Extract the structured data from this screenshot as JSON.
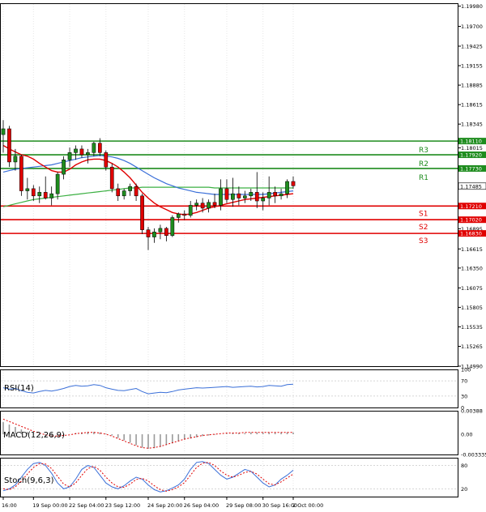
{
  "chart_data": {
    "type": "candlestick",
    "symbol_panel": {
      "price_ticks": [
        "1.19980",
        "1.19700",
        "1.19425",
        "1.19155",
        "1.18885",
        "1.18615",
        "1.18345",
        "1.18015",
        "1.17485",
        "1.16895",
        "1.16615",
        "1.16350",
        "1.16075",
        "1.15805",
        "1.15535",
        "1.15265",
        "1.14990"
      ],
      "price_tick_values": [
        1.1998,
        1.197,
        1.19425,
        1.19155,
        1.18885,
        1.18615,
        1.18345,
        1.18015,
        1.17485,
        1.16895,
        1.16615,
        1.1635,
        1.16075,
        1.15805,
        1.15535,
        1.15265,
        1.1499
      ],
      "ylim": [
        1.1499,
        1.2002
      ],
      "levels": [
        {
          "name": "R3",
          "value": 1.1811,
          "label": "1.18110",
          "color": "#1e8c1e"
        },
        {
          "name": "R2",
          "value": 1.1792,
          "label": "1.17920",
          "color": "#1e8c1e"
        },
        {
          "name": "R1",
          "value": 1.1773,
          "label": "1.17730",
          "color": "#1e8c1e"
        },
        {
          "name": "S1",
          "value": 1.1721,
          "label": "1.17210",
          "color": "#e00000"
        },
        {
          "name": "S2",
          "value": 1.1702,
          "label": "1.17020",
          "color": "#e00000"
        },
        {
          "name": "S3",
          "value": 1.1683,
          "label": "1.16830",
          "color": "#e00000"
        }
      ],
      "current_price": {
        "value": 1.17485,
        "label": "1.17485"
      },
      "candles": [
        {
          "o": 1.182,
          "h": 1.184,
          "l": 1.1795,
          "c": 1.1828
        },
        {
          "o": 1.1828,
          "h": 1.1832,
          "l": 1.1775,
          "c": 1.1782
        },
        {
          "o": 1.1782,
          "h": 1.18,
          "l": 1.177,
          "c": 1.179
        },
        {
          "o": 1.179,
          "h": 1.1792,
          "l": 1.1735,
          "c": 1.1742
        },
        {
          "o": 1.1742,
          "h": 1.176,
          "l": 1.173,
          "c": 1.1745
        },
        {
          "o": 1.1745,
          "h": 1.175,
          "l": 1.1728,
          "c": 1.1735
        },
        {
          "o": 1.1735,
          "h": 1.1748,
          "l": 1.1725,
          "c": 1.174
        },
        {
          "o": 1.174,
          "h": 1.1762,
          "l": 1.173,
          "c": 1.1732
        },
        {
          "o": 1.1732,
          "h": 1.1748,
          "l": 1.1722,
          "c": 1.1738
        },
        {
          "o": 1.1738,
          "h": 1.1768,
          "l": 1.173,
          "c": 1.1765
        },
        {
          "o": 1.1765,
          "h": 1.179,
          "l": 1.1758,
          "c": 1.1785
        },
        {
          "o": 1.1785,
          "h": 1.1802,
          "l": 1.1775,
          "c": 1.1795
        },
        {
          "o": 1.1795,
          "h": 1.1805,
          "l": 1.1785,
          "c": 1.18
        },
        {
          "o": 1.18,
          "h": 1.1805,
          "l": 1.1788,
          "c": 1.1792
        },
        {
          "o": 1.1792,
          "h": 1.18,
          "l": 1.178,
          "c": 1.1795
        },
        {
          "o": 1.1795,
          "h": 1.181,
          "l": 1.179,
          "c": 1.1808
        },
        {
          "o": 1.1808,
          "h": 1.1815,
          "l": 1.179,
          "c": 1.1795
        },
        {
          "o": 1.1795,
          "h": 1.1798,
          "l": 1.177,
          "c": 1.1775
        },
        {
          "o": 1.1775,
          "h": 1.178,
          "l": 1.174,
          "c": 1.1745
        },
        {
          "o": 1.1745,
          "h": 1.1752,
          "l": 1.1728,
          "c": 1.1735
        },
        {
          "o": 1.1735,
          "h": 1.1745,
          "l": 1.173,
          "c": 1.1742
        },
        {
          "o": 1.1742,
          "h": 1.1752,
          "l": 1.1735,
          "c": 1.1748
        },
        {
          "o": 1.1748,
          "h": 1.1752,
          "l": 1.1728,
          "c": 1.1735
        },
        {
          "o": 1.1735,
          "h": 1.1738,
          "l": 1.1682,
          "c": 1.1688
        },
        {
          "o": 1.1688,
          "h": 1.1692,
          "l": 1.166,
          "c": 1.1678
        },
        {
          "o": 1.1678,
          "h": 1.169,
          "l": 1.167,
          "c": 1.1685
        },
        {
          "o": 1.1685,
          "h": 1.1695,
          "l": 1.1675,
          "c": 1.169
        },
        {
          "o": 1.169,
          "h": 1.1692,
          "l": 1.1672,
          "c": 1.168
        },
        {
          "o": 1.168,
          "h": 1.1708,
          "l": 1.1678,
          "c": 1.1705
        },
        {
          "o": 1.1705,
          "h": 1.1712,
          "l": 1.1698,
          "c": 1.171
        },
        {
          "o": 1.171,
          "h": 1.1715,
          "l": 1.1702,
          "c": 1.1708
        },
        {
          "o": 1.1708,
          "h": 1.1728,
          "l": 1.1705,
          "c": 1.1722
        },
        {
          "o": 1.1722,
          "h": 1.173,
          "l": 1.1715,
          "c": 1.1725
        },
        {
          "o": 1.1725,
          "h": 1.1732,
          "l": 1.1712,
          "c": 1.1718
        },
        {
          "o": 1.1718,
          "h": 1.173,
          "l": 1.1712,
          "c": 1.1726
        },
        {
          "o": 1.1726,
          "h": 1.1738,
          "l": 1.1718,
          "c": 1.1722
        },
        {
          "o": 1.1722,
          "h": 1.1758,
          "l": 1.1715,
          "c": 1.1745
        },
        {
          "o": 1.1745,
          "h": 1.1758,
          "l": 1.1725,
          "c": 1.173
        },
        {
          "o": 1.173,
          "h": 1.176,
          "l": 1.172,
          "c": 1.1738
        },
        {
          "o": 1.1738,
          "h": 1.1748,
          "l": 1.1722,
          "c": 1.1732
        },
        {
          "o": 1.1732,
          "h": 1.1742,
          "l": 1.1725,
          "c": 1.1735
        },
        {
          "o": 1.1735,
          "h": 1.1745,
          "l": 1.1728,
          "c": 1.174
        },
        {
          "o": 1.174,
          "h": 1.1768,
          "l": 1.1718,
          "c": 1.1728
        },
        {
          "o": 1.1728,
          "h": 1.174,
          "l": 1.1715,
          "c": 1.1732
        },
        {
          "o": 1.1732,
          "h": 1.1762,
          "l": 1.1722,
          "c": 1.174
        },
        {
          "o": 1.174,
          "h": 1.1748,
          "l": 1.1725,
          "c": 1.1735
        },
        {
          "o": 1.1735,
          "h": 1.1745,
          "l": 1.173,
          "c": 1.1738
        },
        {
          "o": 1.1738,
          "h": 1.1758,
          "l": 1.1732,
          "c": 1.1755
        },
        {
          "o": 1.1755,
          "h": 1.1762,
          "l": 1.1745,
          "c": 1.1749
        }
      ],
      "ma_red": [
        1.1805,
        1.18,
        1.1796,
        1.1792,
        1.179,
        1.1786,
        1.178,
        1.1775,
        1.177,
        1.1768,
        1.1768,
        1.1772,
        1.1778,
        1.1782,
        1.1785,
        1.1786,
        1.1786,
        1.1784,
        1.178,
        1.1775,
        1.1768,
        1.176,
        1.175,
        1.174,
        1.1732,
        1.1725,
        1.172,
        1.1716,
        1.1712,
        1.171,
        1.1709,
        1.171,
        1.1712,
        1.1715,
        1.1718,
        1.172,
        1.1722,
        1.1724,
        1.1726,
        1.1728,
        1.173,
        1.1731,
        1.1732,
        1.1733,
        1.1734,
        1.1735,
        1.1736,
        1.1737,
        1.1738
      ],
      "ma_blue": [
        1.1768,
        1.177,
        1.1772,
        1.1773,
        1.1774,
        1.1775,
        1.1776,
        1.1777,
        1.1778,
        1.178,
        1.1782,
        1.1784,
        1.1786,
        1.1788,
        1.1789,
        1.179,
        1.1791,
        1.179,
        1.1789,
        1.1787,
        1.1784,
        1.178,
        1.1775,
        1.177,
        1.1765,
        1.176,
        1.1756,
        1.1752,
        1.1749,
        1.1746,
        1.1744,
        1.1742,
        1.174,
        1.1739,
        1.1738,
        1.1737,
        1.1737,
        1.1737,
        1.1737,
        1.1737,
        1.1737,
        1.1737,
        1.1737,
        1.1737,
        1.1738,
        1.1739,
        1.174,
        1.1741,
        1.1742
      ],
      "ma_green": [
        1.172,
        1.1722,
        1.1724,
        1.1726,
        1.1728,
        1.173,
        1.1731,
        1.1732,
        1.1733,
        1.1734,
        1.1735,
        1.1736,
        1.1737,
        1.1738,
        1.1739,
        1.174,
        1.1741,
        1.1742,
        1.1743,
        1.1744,
        1.1745,
        1.1746,
        1.1746,
        1.1747,
        1.1747,
        1.1747,
        1.1747,
        1.1747,
        1.1747,
        1.1747,
        1.1747,
        1.1747,
        1.1747,
        1.1747,
        1.1747,
        1.1746,
        1.1746,
        1.1746,
        1.1746,
        1.1746,
        1.1746,
        1.1746,
        1.1746,
        1.1746,
        1.1746,
        1.1746,
        1.1746,
        1.1746,
        1.1746
      ]
    },
    "rsi_panel": {
      "label": "RSI(14)",
      "ticks": [
        "100",
        "70",
        "30",
        "0"
      ],
      "tick_values": [
        100,
        70,
        30,
        0
      ],
      "values": [
        52,
        48,
        50,
        44,
        40,
        38,
        42,
        45,
        43,
        46,
        50,
        55,
        58,
        56,
        57,
        60,
        58,
        52,
        48,
        45,
        44,
        47,
        50,
        42,
        36,
        38,
        40,
        39,
        42,
        46,
        48,
        50,
        52,
        51,
        52,
        53,
        54,
        55,
        53,
        54,
        55,
        56,
        54,
        55,
        58,
        57,
        56,
        60,
        61
      ]
    },
    "macd_panel": {
      "label": "MACD(12,26,9)",
      "ticks": [
        "0.00388",
        "0.00",
        "-0.003335"
      ],
      "tick_values": [
        0.00388,
        0.0,
        -0.003335
      ],
      "hist": [
        0.002,
        0.0016,
        0.0012,
        0.0008,
        0.0004,
        0.0001,
        -0.0002,
        -0.0004,
        -0.0005,
        -0.0004,
        -0.0002,
        0.0,
        0.0002,
        0.0003,
        0.0004,
        0.0004,
        0.0003,
        0.0001,
        -0.0002,
        -0.0006,
        -0.001,
        -0.0014,
        -0.0018,
        -0.0022,
        -0.0024,
        -0.0023,
        -0.0021,
        -0.0018,
        -0.0015,
        -0.0012,
        -0.0009,
        -0.0007,
        -0.0005,
        -0.0003,
        -0.0002,
        -0.0001,
        0.0,
        0.0001,
        0.0002,
        0.0002,
        0.0002,
        0.0003,
        0.0003,
        0.0003,
        0.0003,
        0.0003,
        0.0003,
        0.0003,
        0.0003
      ],
      "signal": [
        0.0025,
        0.0021,
        0.0017,
        0.0013,
        0.0009,
        0.0005,
        0.0002,
        -0.0001,
        -0.0003,
        -0.0003,
        -0.0002,
        -0.0001,
        0.0001,
        0.0002,
        0.0003,
        0.0003,
        0.0002,
        0.0,
        -0.0003,
        -0.0007,
        -0.0011,
        -0.0015,
        -0.0019,
        -0.0022,
        -0.0023,
        -0.0022,
        -0.002,
        -0.0017,
        -0.0014,
        -0.0011,
        -0.0008,
        -0.0006,
        -0.0004,
        -0.0002,
        -0.0001,
        0.0,
        0.0001,
        0.0002,
        0.0002,
        0.0002,
        0.0003,
        0.0003,
        0.0003,
        0.0003,
        0.0003,
        0.0003,
        0.0003,
        0.0003,
        0.0003
      ]
    },
    "stoch_panel": {
      "label": "Stoch(9,6,3)",
      "ticks": [
        "80",
        "20"
      ],
      "tick_values": [
        80,
        20
      ],
      "k": [
        15,
        20,
        30,
        50,
        70,
        85,
        88,
        80,
        60,
        35,
        20,
        25,
        45,
        70,
        80,
        75,
        55,
        35,
        25,
        20,
        28,
        40,
        50,
        45,
        30,
        18,
        12,
        15,
        22,
        30,
        45,
        70,
        88,
        90,
        85,
        70,
        55,
        45,
        50,
        60,
        70,
        65,
        50,
        35,
        25,
        30,
        45,
        55,
        68
      ],
      "d": [
        20,
        18,
        25,
        40,
        58,
        75,
        85,
        84,
        72,
        52,
        32,
        25,
        35,
        55,
        72,
        78,
        68,
        50,
        35,
        25,
        24,
        32,
        44,
        47,
        40,
        28,
        18,
        14,
        18,
        25,
        36,
        55,
        75,
        86,
        88,
        80,
        66,
        55,
        50,
        55,
        62,
        65,
        58,
        45,
        33,
        30,
        38,
        48,
        58
      ]
    },
    "x_ticks": [
      "16:00",
      "19 Sep 00:00",
      "22 Sep 04:00",
      "23 Sep 12:00",
      "24 Sep 20:00",
      "26 Sep 04:00",
      "29 Sep 08:00",
      "30 Sep 16:00",
      "2 Oct 00:00"
    ],
    "x_tick_candle_index": [
      0,
      5,
      11,
      17,
      24,
      30,
      37,
      43,
      48
    ],
    "colors": {
      "bull": "#1e8c1e",
      "bear": "#e00000",
      "ma_red": "#e00000",
      "ma_blue": "#3a6fd8",
      "ma_green": "#3cb043",
      "rsi": "#3a6fd8",
      "macd_hist": "#9a9a9a",
      "macd_signal": "#e00000",
      "stoch_k": "#3a6fd8",
      "stoch_d": "#e00000"
    }
  }
}
